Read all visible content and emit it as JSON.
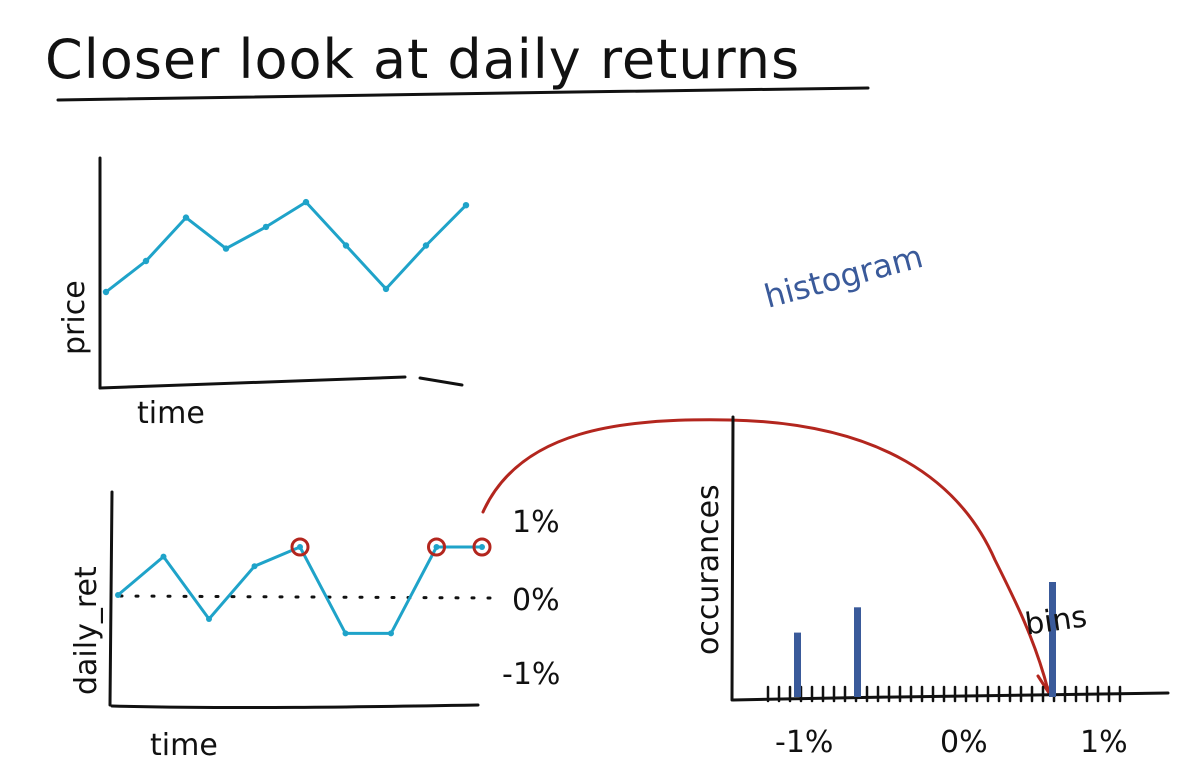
{
  "title": "Closer look at daily returns",
  "colors": {
    "ink": "#111111",
    "line": "#1fa3c9",
    "marker": "#b3261e",
    "histogram": "#3a5a9a",
    "arrow": "#b3261e"
  },
  "price_chart": {
    "ylabel": "price",
    "xlabel": "time",
    "points": [
      [
        0,
        0
      ],
      [
        1,
        2
      ],
      [
        2,
        4.8
      ],
      [
        3,
        2.8
      ],
      [
        4,
        4.2
      ],
      [
        5,
        5.8
      ],
      [
        6,
        3
      ],
      [
        7,
        0.2
      ],
      [
        8,
        3
      ],
      [
        9,
        5.6
      ]
    ]
  },
  "returns_chart": {
    "ylabel": "daily_ret",
    "xlabel": "time",
    "tick_labels": [
      "1%",
      "0%",
      "-1%"
    ],
    "points": [
      [
        0,
        0.0
      ],
      [
        1,
        0.8
      ],
      [
        2,
        -0.5
      ],
      [
        3,
        0.6
      ],
      [
        4,
        1.0
      ],
      [
        5,
        -0.8
      ],
      [
        6,
        -0.8
      ],
      [
        7,
        1.0
      ],
      [
        8,
        1.0
      ]
    ],
    "circled": [
      4,
      7,
      8
    ]
  },
  "histogram": {
    "annotation": "histogram",
    "ylabel": "occurances",
    "bins_label": "bins",
    "tick_labels": [
      "-1%",
      "0%",
      "1%"
    ],
    "bars": [
      [
        -0.95,
        2.8
      ],
      [
        -0.55,
        3.9
      ],
      [
        0.75,
        5.0
      ]
    ]
  }
}
